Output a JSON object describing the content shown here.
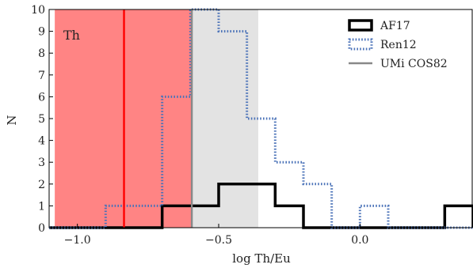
{
  "chart_data": {
    "type": "histogram",
    "xlabel": "log Th/Eu",
    "ylabel": "N",
    "xlim": [
      -1.1,
      0.4
    ],
    "ylim": [
      0,
      10
    ],
    "x_ticks": [
      -1.0,
      -0.5,
      0.0
    ],
    "x_tick_labels": [
      "−1.0",
      "−0.5",
      "0.0"
    ],
    "y_ticks": [
      0,
      1,
      2,
      3,
      4,
      5,
      6,
      7,
      8,
      9,
      10
    ],
    "y_tick_labels": [
      "0",
      "1",
      "2",
      "3",
      "4",
      "5",
      "6",
      "7",
      "8",
      "9",
      "10"
    ],
    "annotation": "Th",
    "bin_edges": [
      -1.1,
      -1.0,
      -0.9,
      -0.8,
      -0.7,
      -0.6,
      -0.5,
      -0.4,
      -0.3,
      -0.2,
      -0.1,
      0.0,
      0.1,
      0.2,
      0.3,
      0.4
    ],
    "series": [
      {
        "name": "AF17",
        "style": "solid-thick",
        "color": "#000000",
        "counts": [
          0,
          0,
          0,
          0,
          1,
          1,
          2,
          2,
          1,
          0,
          0,
          0,
          0,
          0,
          1
        ]
      },
      {
        "name": "Ren12",
        "style": "dotted",
        "color": "#4a72b8",
        "counts": [
          0,
          0,
          1,
          1,
          6,
          10,
          9,
          5,
          3,
          2,
          0,
          1,
          0,
          0,
          0
        ]
      }
    ],
    "shaded_regions": [
      {
        "x": [
          -1.08,
          -0.595
        ],
        "color": "#ff5555",
        "opacity": 0.72
      },
      {
        "x": [
          -0.595,
          -0.36
        ],
        "color": "#d9d9d9",
        "opacity": 0.75
      }
    ],
    "vertical_lines": [
      {
        "name": "UMi COS82",
        "x": -0.595,
        "color": "#888888"
      },
      {
        "x": -0.835,
        "color": "#ff0000"
      }
    ],
    "legend_position": "top-right",
    "legend": [
      {
        "label": "AF17",
        "style": "box-solid",
        "color": "#000000"
      },
      {
        "label": "Ren12",
        "style": "box-dotted",
        "color": "#4a72b8"
      },
      {
        "label": "UMi COS82",
        "style": "line",
        "color": "#888888"
      }
    ]
  }
}
